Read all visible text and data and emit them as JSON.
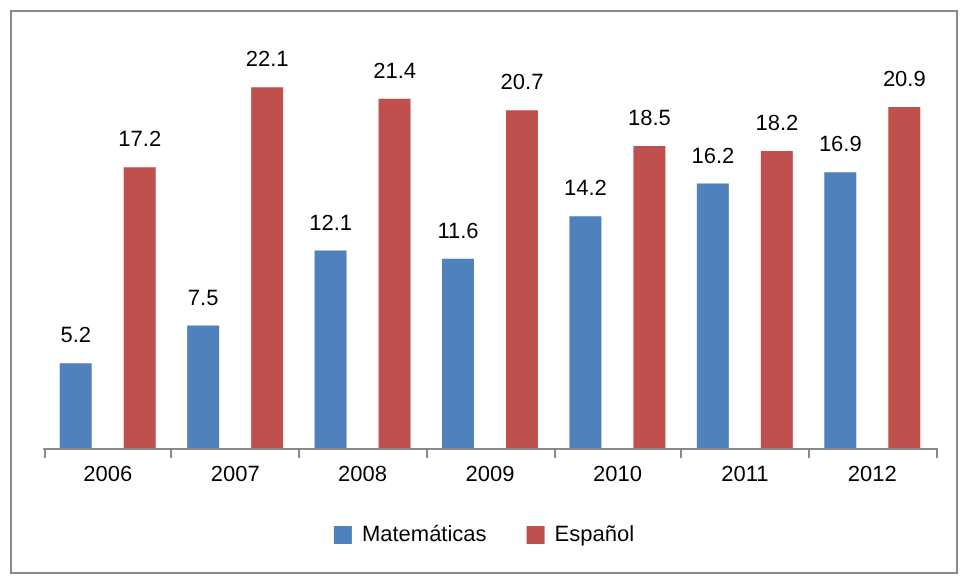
{
  "chart_data": {
    "type": "bar",
    "categories": [
      "2006",
      "2007",
      "2008",
      "2009",
      "2010",
      "2011",
      "2012"
    ],
    "series": [
      {
        "name": "Matemáticas",
        "color": "#4f81bd",
        "values": [
          5.2,
          7.5,
          12.1,
          11.6,
          14.2,
          16.2,
          16.9
        ]
      },
      {
        "name": "Español",
        "color": "#c0504d",
        "values": [
          17.2,
          22.1,
          21.4,
          20.7,
          18.5,
          18.2,
          20.9
        ]
      }
    ],
    "data_labels": true,
    "legend": "bottom"
  }
}
